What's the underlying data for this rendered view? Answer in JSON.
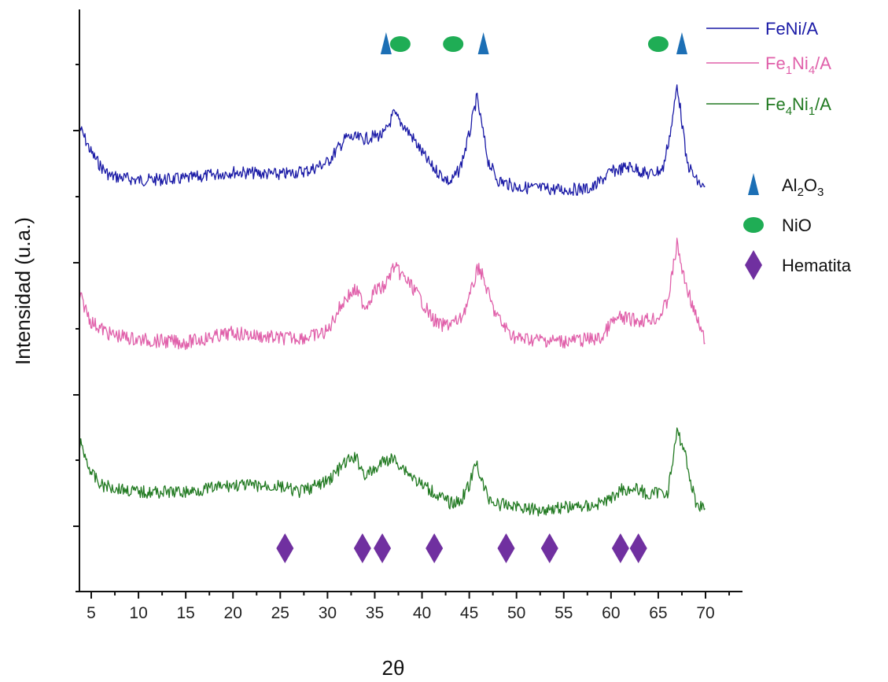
{
  "chart_data": {
    "type": "line",
    "title": "",
    "xlabel": "2θ",
    "ylabel": "Intensidad (u.a.)",
    "xlim": [
      3.5,
      74
    ],
    "x_ticks": [
      5,
      10,
      15,
      20,
      25,
      30,
      35,
      40,
      45,
      50,
      55,
      60,
      65,
      70
    ],
    "x_tick_labels": [
      "5",
      "10",
      "15",
      "20",
      "25",
      "30",
      "35",
      "40",
      "45",
      "50",
      "55",
      "60",
      "65",
      "70"
    ],
    "y_tick_labels_shown": false,
    "grid": false,
    "legend": {
      "placement": "top-right",
      "entries": [
        {
          "series": 0,
          "base": "FeNi/A",
          "parts": [
            {
              "t": "FeNi/A",
              "sub": false
            }
          ]
        },
        {
          "series": 1,
          "base": "Fe1Ni4/A",
          "parts": [
            {
              "t": "Fe",
              "sub": false
            },
            {
              "t": "1",
              "sub": true
            },
            {
              "t": "Ni",
              "sub": false
            },
            {
              "t": "4",
              "sub": true
            },
            {
              "t": "/A",
              "sub": false
            }
          ]
        },
        {
          "series": 2,
          "base": "Fe4Ni1/A",
          "parts": [
            {
              "t": "Fe",
              "sub": false
            },
            {
              "t": "4",
              "sub": true
            },
            {
              "t": "Ni",
              "sub": false
            },
            {
              "t": "1",
              "sub": true
            },
            {
              "t": "/A",
              "sub": false
            }
          ]
        }
      ]
    },
    "series": [
      {
        "name": "FeNi/A",
        "color": "#1a1aa6",
        "points": [
          [
            3.8,
            0.9
          ],
          [
            5,
            0.72
          ],
          [
            6,
            0.62
          ],
          [
            7,
            0.55
          ],
          [
            10,
            0.52
          ],
          [
            15,
            0.53
          ],
          [
            20,
            0.58
          ],
          [
            25,
            0.56
          ],
          [
            28,
            0.59
          ],
          [
            30,
            0.65
          ],
          [
            32,
            0.83
          ],
          [
            34,
            0.82
          ],
          [
            35,
            0.84
          ],
          [
            36,
            0.85
          ],
          [
            37,
            1.0
          ],
          [
            38,
            0.92
          ],
          [
            39,
            0.83
          ],
          [
            40,
            0.72
          ],
          [
            41,
            0.62
          ],
          [
            42,
            0.56
          ],
          [
            43,
            0.5
          ],
          [
            44,
            0.6
          ],
          [
            45,
            0.85
          ],
          [
            45.8,
            1.12
          ],
          [
            46.5,
            0.85
          ],
          [
            47,
            0.66
          ],
          [
            48,
            0.52
          ],
          [
            50,
            0.47
          ],
          [
            55,
            0.45
          ],
          [
            58,
            0.46
          ],
          [
            60,
            0.58
          ],
          [
            62,
            0.62
          ],
          [
            64,
            0.56
          ],
          [
            65.5,
            0.6
          ],
          [
            66.5,
            0.95
          ],
          [
            67,
            1.22
          ],
          [
            67.5,
            0.95
          ],
          [
            68,
            0.65
          ],
          [
            69,
            0.52
          ],
          [
            70,
            0.45
          ]
        ]
      },
      {
        "name": "Fe1Ni4/A",
        "color": "#e060aa",
        "points": [
          [
            3.8,
            0.64
          ],
          [
            5,
            0.45
          ],
          [
            7,
            0.36
          ],
          [
            10,
            0.32
          ],
          [
            15,
            0.3
          ],
          [
            20,
            0.37
          ],
          [
            25,
            0.33
          ],
          [
            28,
            0.34
          ],
          [
            30,
            0.38
          ],
          [
            31,
            0.52
          ],
          [
            32,
            0.63
          ],
          [
            33,
            0.68
          ],
          [
            34,
            0.56
          ],
          [
            35,
            0.68
          ],
          [
            36,
            0.7
          ],
          [
            37,
            0.85
          ],
          [
            38,
            0.78
          ],
          [
            39,
            0.7
          ],
          [
            40,
            0.6
          ],
          [
            41,
            0.48
          ],
          [
            42,
            0.42
          ],
          [
            43,
            0.44
          ],
          [
            44,
            0.46
          ],
          [
            45,
            0.62
          ],
          [
            46,
            0.86
          ],
          [
            46.8,
            0.7
          ],
          [
            47.5,
            0.55
          ],
          [
            48.5,
            0.43
          ],
          [
            50,
            0.33
          ],
          [
            55,
            0.31
          ],
          [
            59,
            0.33
          ],
          [
            60,
            0.44
          ],
          [
            61,
            0.48
          ],
          [
            63,
            0.46
          ],
          [
            65,
            0.48
          ],
          [
            66,
            0.6
          ],
          [
            67,
            1.02
          ],
          [
            67.6,
            0.8
          ],
          [
            68.5,
            0.6
          ],
          [
            69,
            0.48
          ],
          [
            70,
            0.3
          ]
        ]
      },
      {
        "name": "Fe4Ni1/A",
        "color": "#227a22",
        "points": [
          [
            3.8,
            0.46
          ],
          [
            5,
            0.24
          ],
          [
            6,
            0.15
          ],
          [
            10,
            0.1
          ],
          [
            15,
            0.1
          ],
          [
            20,
            0.15
          ],
          [
            25,
            0.14
          ],
          [
            27,
            0.1
          ],
          [
            29,
            0.15
          ],
          [
            30,
            0.18
          ],
          [
            32,
            0.32
          ],
          [
            33,
            0.35
          ],
          [
            34,
            0.22
          ],
          [
            35,
            0.26
          ],
          [
            36,
            0.33
          ],
          [
            37,
            0.34
          ],
          [
            38,
            0.28
          ],
          [
            39,
            0.21
          ],
          [
            40,
            0.15
          ],
          [
            41,
            0.11
          ],
          [
            42,
            0.06
          ],
          [
            43,
            0.02
          ],
          [
            44,
            0.03
          ],
          [
            45,
            0.15
          ],
          [
            45.8,
            0.32
          ],
          [
            46.3,
            0.18
          ],
          [
            47,
            0.06
          ],
          [
            48,
            0.01
          ],
          [
            50,
            0.0
          ],
          [
            52,
            -0.03
          ],
          [
            55,
            -0.01
          ],
          [
            58,
            0.0
          ],
          [
            60,
            0.05
          ],
          [
            61,
            0.12
          ],
          [
            63,
            0.12
          ],
          [
            64,
            0.07
          ],
          [
            65,
            0.1
          ],
          [
            66,
            0.1
          ],
          [
            66.7,
            0.4
          ],
          [
            67,
            0.54
          ],
          [
            67.8,
            0.4
          ],
          [
            68.5,
            0.15
          ],
          [
            69,
            0.02
          ],
          [
            70,
            -0.02
          ]
        ]
      }
    ],
    "reflection_markers": [
      {
        "phase": "Al2O3",
        "shape": "triangle",
        "color": "#1c6fb5",
        "x": [
          36.2,
          46.5,
          67.5
        ]
      },
      {
        "phase": "NiO",
        "shape": "ellipse",
        "color": "#1fad55",
        "x": [
          37.7,
          43.3,
          65.0
        ]
      },
      {
        "phase": "Hematita",
        "shape": "diamond",
        "color": "#7030a0",
        "x": [
          25.5,
          33.7,
          35.8,
          41.3,
          48.9,
          53.5,
          61.0,
          62.9
        ]
      }
    ],
    "marker_legend": [
      {
        "shape": "triangle",
        "color": "#1c6fb5",
        "parts": [
          {
            "t": "Al",
            "sub": false
          },
          {
            "t": "2",
            "sub": true
          },
          {
            "t": "O",
            "sub": false
          },
          {
            "t": "3",
            "sub": true
          }
        ]
      },
      {
        "shape": "ellipse",
        "color": "#1fad55",
        "parts": [
          {
            "t": "NiO",
            "sub": false
          }
        ]
      },
      {
        "shape": "diamond",
        "color": "#7030a0",
        "parts": [
          {
            "t": "Hematita",
            "sub": false
          }
        ]
      }
    ]
  }
}
